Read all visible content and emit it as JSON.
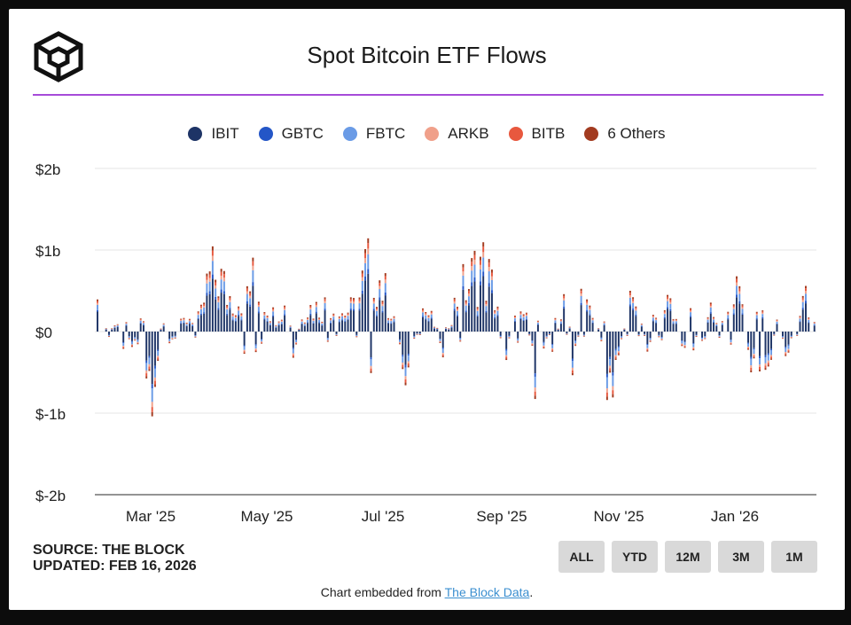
{
  "header": {
    "title": "Spot Bitcoin ETF Flows",
    "logo_icon": "cube-logo-icon"
  },
  "legend": [
    {
      "label": "IBIT",
      "color": "#1e3466"
    },
    {
      "label": "GBTC",
      "color": "#2456c7"
    },
    {
      "label": "FBTC",
      "color": "#6a9be6"
    },
    {
      "label": "ARKB",
      "color": "#f0a08a"
    },
    {
      "label": "BITB",
      "color": "#e8583e"
    },
    {
      "label": "6 Others",
      "color": "#a23b20"
    }
  ],
  "footer_info": {
    "source": "SOURCE: THE BLOCK",
    "updated": "UPDATED: FEB 16, 2026"
  },
  "range_buttons": [
    "ALL",
    "YTD",
    "12M",
    "3M",
    "1M"
  ],
  "embed_note": {
    "prefix": "Chart embedded from ",
    "link": "The Block Data",
    "suffix": "."
  },
  "chart_data": {
    "type": "bar",
    "stacked": true,
    "title": "Spot Bitcoin ETF Flows",
    "y_ticks": [
      "$2b",
      "$1b",
      "$0",
      "$-1b",
      "$-2b"
    ],
    "ylim": [
      -2,
      2
    ],
    "y_unit": "billion USD",
    "x_ticks": [
      "Mar '25",
      "May '25",
      "Jul '25",
      "Sep '25",
      "Nov '25",
      "Jan '26"
    ],
    "grid": true,
    "legend_position": "top",
    "series_colors": [
      "#1e3466",
      "#2456c7",
      "#6a9be6",
      "#f0a08a",
      "#e8583e",
      "#a23b20"
    ],
    "daily_net_flows_sample": [
      0.35,
      -0.2,
      0.25,
      -0.3,
      -0.1,
      -0.5,
      -1.15,
      0.35,
      -0.4,
      0.15,
      0.25,
      0.2,
      0.9,
      0.95,
      0.6,
      0.55,
      0.7,
      0.9,
      0.55,
      0.25,
      0.5,
      -0.6,
      0.4,
      0.4,
      0.4,
      0.5,
      0.3,
      0.35,
      0.45,
      1.2,
      1.0,
      0.6,
      0.2,
      -0.8,
      0.25,
      0.4,
      0.2,
      -0.4,
      0.3,
      0.7,
      0.8,
      1.2,
      0.9,
      0.45,
      -0.4,
      0.3,
      0.3,
      -0.9,
      0.55,
      -0.6,
      0.75,
      -0.6,
      0.65,
      0.25,
      -0.2,
      -0.9,
      -0.3,
      0.45,
      0.45,
      -0.3,
      -0.5,
      0.75,
      0.3,
      -0.3,
      0.5,
      -0.3,
      0.55,
      -0.4,
      0.55,
      0.8,
      -0.45,
      -0.6,
      -0.8,
      0.25,
      -0.4,
      0.15,
      0.55,
      -0.3
    ]
  }
}
